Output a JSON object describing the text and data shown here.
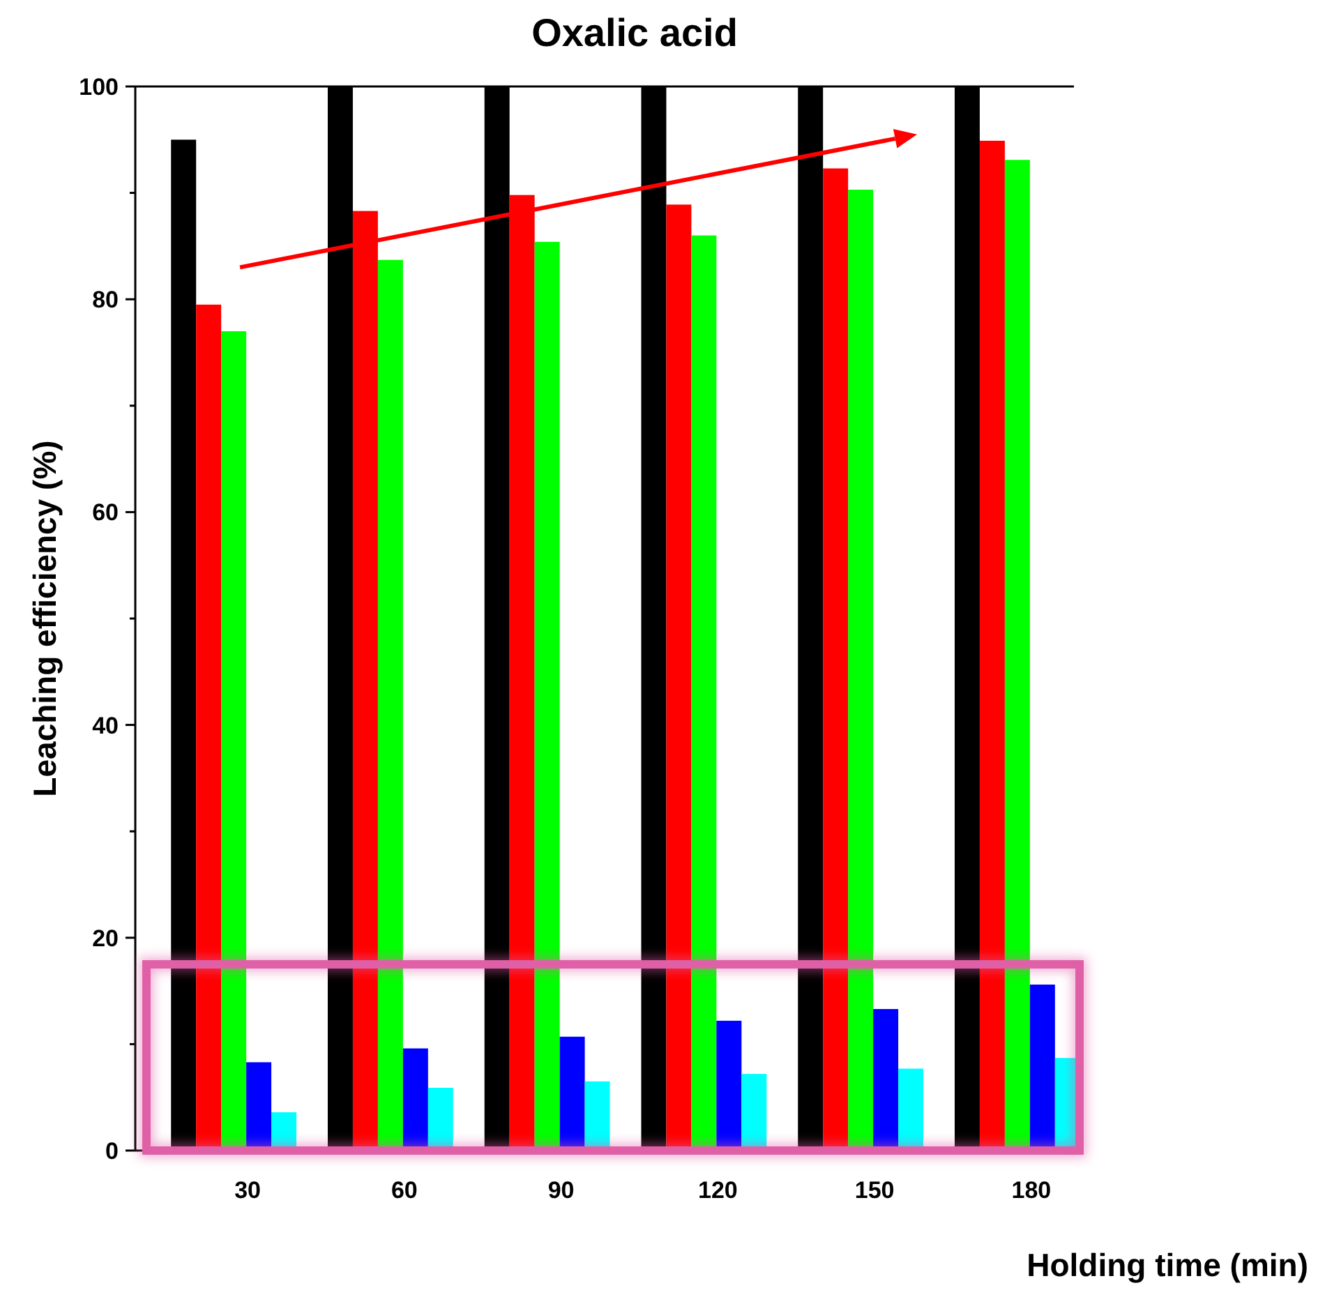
{
  "chart_data": {
    "type": "bar",
    "title": "Oxalic acid",
    "xlabel": "Holding time (min)",
    "ylabel": "Leaching efficiency (%)",
    "categories": [
      "30",
      "60",
      "90",
      "120",
      "150",
      "180"
    ],
    "series": [
      {
        "color": "#000000",
        "values": [
          95.0,
          100,
          100,
          100,
          100,
          100
        ]
      },
      {
        "color": "#ff0000",
        "values": [
          79.5,
          88.3,
          89.8,
          88.9,
          92.3,
          94.9
        ]
      },
      {
        "color": "#00ff00",
        "values": [
          77.0,
          83.7,
          85.4,
          86.0,
          90.3,
          93.1
        ]
      },
      {
        "color": "#0000ff",
        "values": [
          8.3,
          9.6,
          10.7,
          12.2,
          13.3,
          15.6
        ]
      },
      {
        "color": "#00ffff",
        "values": [
          3.6,
          5.9,
          6.5,
          7.2,
          7.7,
          8.7
        ]
      }
    ],
    "ylim": [
      0,
      100
    ],
    "yticks": [
      0,
      {
        "value": 10,
        "label": null
      },
      20,
      {
        "value": 30,
        "label": null
      },
      40,
      {
        "value": 50,
        "label": null
      },
      60,
      {
        "value": 70,
        "label": null
      },
      80,
      {
        "value": 90,
        "label": null
      },
      100
    ],
    "grid": false
  }
}
